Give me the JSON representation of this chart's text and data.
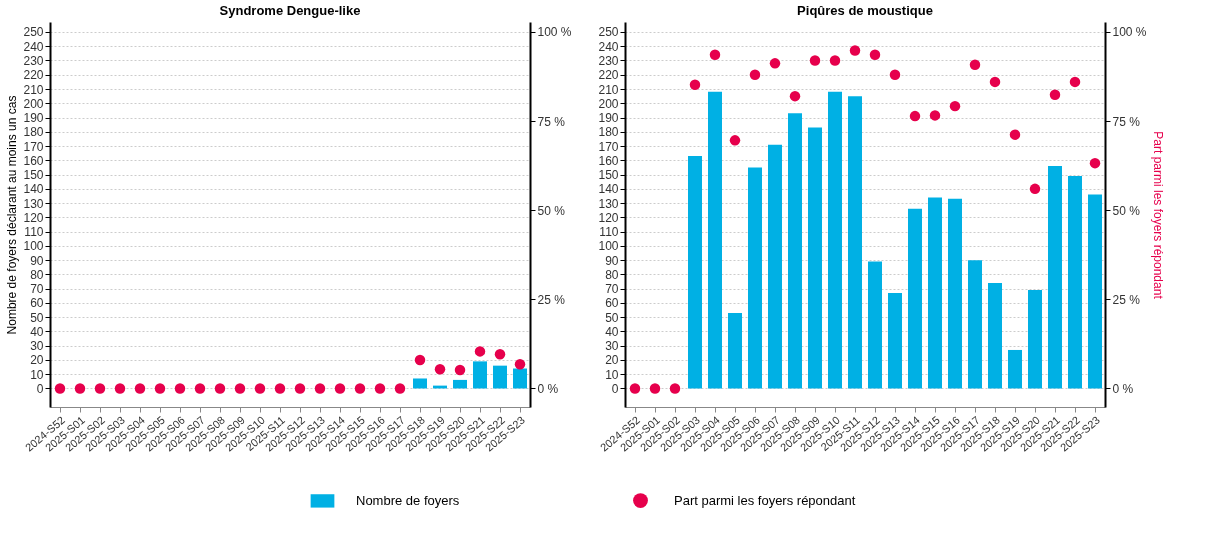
{
  "chart_data": [
    {
      "type": "bar",
      "title": "Syndrome Dengue-like",
      "ylabel": "Nombre de foyers déclarant au moins un cas",
      "categories": [
        "2024-S52",
        "2025-S01",
        "2025-S02",
        "2025-S03",
        "2025-S04",
        "2025-S05",
        "2025-S06",
        "2025-S07",
        "2025-S08",
        "2025-S09",
        "2025-S10",
        "2025-S11",
        "2025-S12",
        "2025-S13",
        "2025-S14",
        "2025-S15",
        "2025-S16",
        "2025-S17",
        "2025-S18",
        "2025-S19",
        "2025-S20",
        "2025-S21",
        "2025-S22",
        "2025-S23"
      ],
      "series": [
        {
          "name": "Nombre de foyers",
          "color": "#00b0e4",
          "values": [
            0,
            0,
            0,
            0,
            0,
            0,
            0,
            0,
            0,
            0,
            0,
            0,
            0,
            0,
            0,
            0,
            0,
            0,
            7,
            2,
            6,
            19,
            16,
            14
          ]
        },
        {
          "name": "Part parmi les foyers répondant",
          "type": "scatter",
          "axis": "y2",
          "color": "#e6004c",
          "values": [
            0,
            0,
            0,
            0,
            0,
            0,
            0,
            0,
            0,
            0,
            0,
            0,
            0,
            0,
            0,
            0,
            0,
            0,
            8,
            5.4,
            5.2,
            10.4,
            9.6,
            6.8
          ]
        }
      ],
      "ylim": [
        -13,
        257
      ],
      "yticks": [
        0,
        10,
        20,
        30,
        40,
        50,
        60,
        70,
        80,
        90,
        100,
        110,
        120,
        130,
        140,
        150,
        160,
        170,
        180,
        190,
        200,
        210,
        220,
        230,
        240,
        250
      ],
      "y2lim": [
        -5.2,
        102.8
      ],
      "y2ticks": [
        {
          "value": 0,
          "label": "0 %"
        },
        {
          "value": 25,
          "label": "25 %"
        },
        {
          "value": 50,
          "label": "50 %"
        },
        {
          "value": 75,
          "label": "75 %"
        },
        {
          "value": 100,
          "label": "100 %"
        }
      ],
      "grid": "y",
      "legend": "bottom",
      "marker": "circle"
    },
    {
      "type": "bar",
      "title": "Piqûres de moustique",
      "y2label": "Part parmi les foyers répondant",
      "categories": [
        "2024-S52",
        "2025-S01",
        "2025-S02",
        "2025-S03",
        "2025-S04",
        "2025-S05",
        "2025-S06",
        "2025-S07",
        "2025-S08",
        "2025-S09",
        "2025-S10",
        "2025-S11",
        "2025-S12",
        "2025-S13",
        "2025-S14",
        "2025-S15",
        "2025-S16",
        "2025-S17",
        "2025-S18",
        "2025-S19",
        "2025-S20",
        "2025-S21",
        "2025-S22",
        "2025-S23"
      ],
      "series": [
        {
          "color": "#00b0e4",
          "values": [
            0,
            0,
            0,
            163,
            208,
            53,
            155,
            171,
            193,
            183,
            208,
            205,
            89,
            67,
            126,
            134,
            133,
            90,
            74,
            27,
            69,
            156,
            149,
            136
          ]
        },
        {
          "type": "scatter",
          "axis": "y2",
          "color": "#e6004c",
          "values": [
            0,
            0,
            0,
            85.2,
            93.6,
            69.6,
            88,
            91.2,
            82,
            92,
            92,
            94.8,
            93.6,
            88,
            76.4,
            76.6,
            79.2,
            90.8,
            86,
            71.2,
            56,
            82.4,
            86,
            63.2
          ]
        }
      ],
      "ylim": [
        -13,
        257
      ],
      "yticks": [
        0,
        10,
        20,
        30,
        40,
        50,
        60,
        70,
        80,
        90,
        100,
        110,
        120,
        130,
        140,
        150,
        160,
        170,
        180,
        190,
        200,
        210,
        220,
        230,
        240,
        250
      ],
      "y2lim": [
        -5.2,
        102.8
      ],
      "y2ticks": [
        {
          "value": 0,
          "label": "0 %"
        },
        {
          "value": 25,
          "label": "25 %"
        },
        {
          "value": 50,
          "label": "50 %"
        },
        {
          "value": 75,
          "label": "75 %"
        },
        {
          "value": 100,
          "label": "100 %"
        }
      ],
      "grid": "y",
      "marker": "circle"
    }
  ]
}
